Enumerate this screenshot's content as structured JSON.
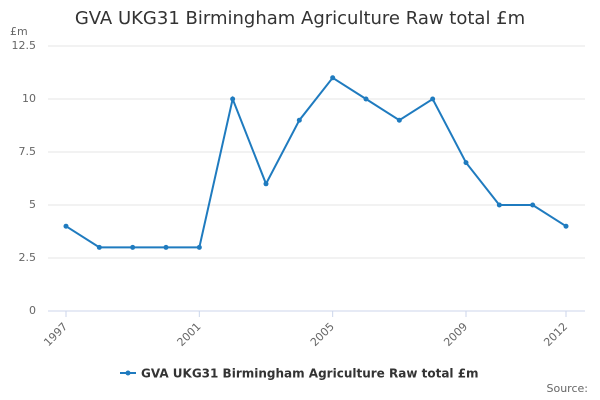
{
  "chart_data": {
    "type": "line",
    "title": "GVA UKG31 Birmingham Agriculture Raw total £m",
    "y_label": "£m",
    "source": "Source:",
    "x": [
      1997,
      1998,
      1999,
      2000,
      2001,
      2002,
      2003,
      2004,
      2005,
      2006,
      2007,
      2008,
      2009,
      2010,
      2011,
      2012
    ],
    "series": [
      {
        "name": "GVA UKG31 Birmingham Agriculture Raw total £m",
        "color": "#1f7bbf",
        "values": [
          4,
          3,
          3,
          3,
          3,
          10,
          6,
          9,
          11,
          10,
          9,
          10,
          7,
          5,
          5,
          4
        ]
      }
    ],
    "xlim": [
      1997,
      2012
    ],
    "xticks": [
      1997,
      2001,
      2005,
      2009,
      2012
    ],
    "ylim": [
      0,
      12.5
    ],
    "yticks": [
      0,
      2.5,
      5,
      7.5,
      10,
      12.5
    ],
    "grid": true
  }
}
